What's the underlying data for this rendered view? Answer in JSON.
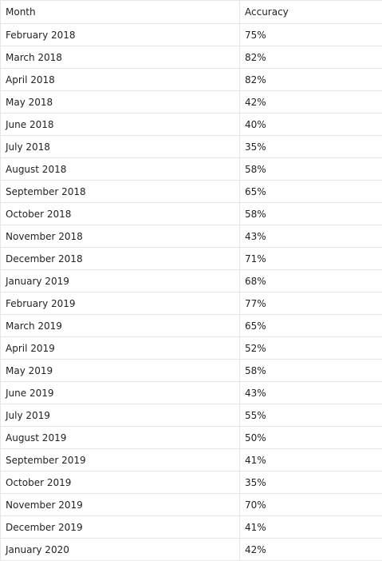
{
  "table": {
    "columns": [
      "Month",
      "Accuracy"
    ],
    "rows": [
      [
        "February 2018",
        "75%"
      ],
      [
        "March 2018",
        "82%"
      ],
      [
        "April 2018",
        "82%"
      ],
      [
        "May 2018",
        "42%"
      ],
      [
        "June 2018",
        "40%"
      ],
      [
        "July 2018",
        "35%"
      ],
      [
        "August 2018",
        "58%"
      ],
      [
        "September 2018",
        "65%"
      ],
      [
        "October 2018",
        "58%"
      ],
      [
        "November 2018",
        "43%"
      ],
      [
        "December 2018",
        "71%"
      ],
      [
        "January 2019",
        "68%"
      ],
      [
        "February 2019",
        "77%"
      ],
      [
        "March 2019",
        "65%"
      ],
      [
        "April 2019",
        "52%"
      ],
      [
        "May 2019",
        "58%"
      ],
      [
        "June 2019",
        "43%"
      ],
      [
        "July 2019",
        "55%"
      ],
      [
        "August 2019",
        "50%"
      ],
      [
        "September 2019",
        "41%"
      ],
      [
        "October 2019",
        "35%"
      ],
      [
        "November 2019",
        "70%"
      ],
      [
        "December 2019",
        "41%"
      ],
      [
        "January 2020",
        "42%"
      ]
    ]
  }
}
